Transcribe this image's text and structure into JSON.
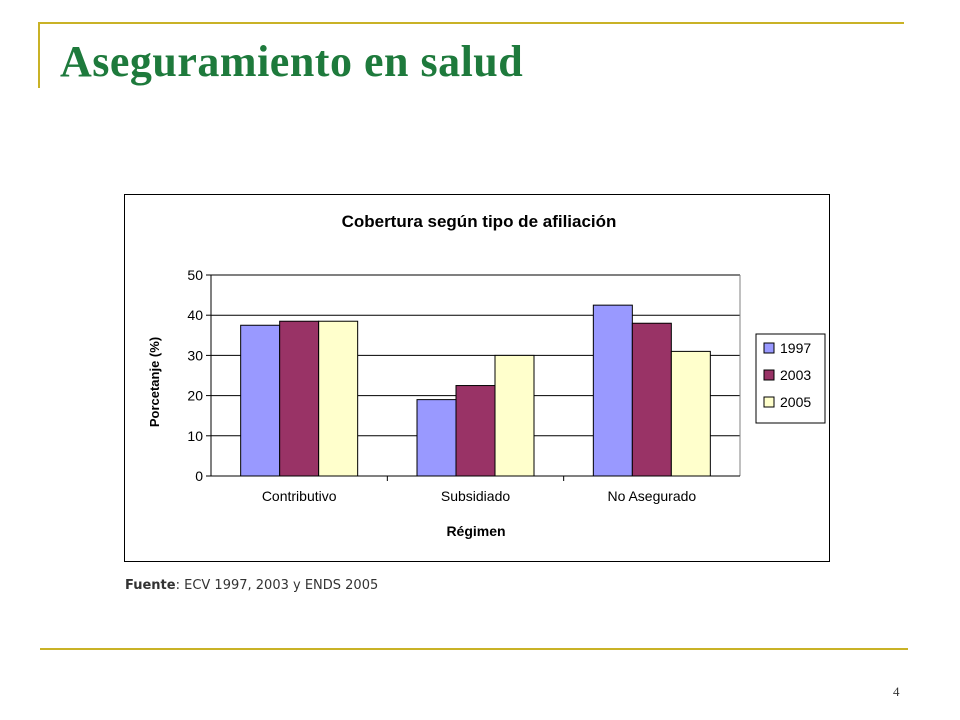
{
  "slide": {
    "title": "Aseguramiento en salud",
    "source_label": "Fuente",
    "source_text": ": ECV 1997, 2003 y ENDS 2005",
    "page_number": "4"
  },
  "colors": {
    "accent_line": "#c9b226",
    "title": "#1e7a3c",
    "series_1997": "#9999ff",
    "series_2003": "#993366",
    "series_2005": "#ffffcc"
  },
  "chart_data": {
    "type": "bar",
    "title": "Cobertura según tipo de afiliación",
    "xlabel": "Régimen",
    "ylabel": "Porcetanje (%)",
    "ylim": [
      0,
      50
    ],
    "yticks": [
      0,
      10,
      20,
      30,
      40,
      50
    ],
    "grid": true,
    "legend_position": "right",
    "categories": [
      "Contributivo",
      "Subsidiado",
      "No Asegurado"
    ],
    "series": [
      {
        "name": "1997",
        "color": "#9999ff",
        "values": [
          37.5,
          19,
          42.5
        ]
      },
      {
        "name": "2003",
        "color": "#993366",
        "values": [
          38.5,
          22.5,
          38
        ]
      },
      {
        "name": "2005",
        "color": "#ffffcc",
        "values": [
          38.5,
          30,
          31
        ]
      }
    ]
  }
}
